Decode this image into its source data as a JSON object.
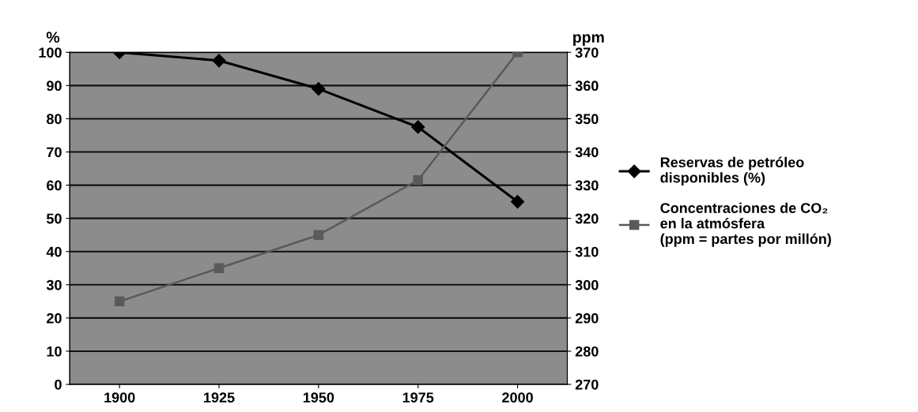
{
  "chart_data": {
    "type": "line",
    "ylabel": "%",
    "y2label": "ppm",
    "categories": [
      "1900",
      "1925",
      "1950",
      "1975",
      "2000"
    ],
    "series": [
      {
        "name": "Reservas de petróleo\ndisponibles (%)",
        "color": "#000000",
        "marker": "diamond",
        "values": [
          100,
          97.5,
          89,
          77.5,
          55
        ]
      },
      {
        "name": "Concentraciones de CO₂\nen la atmósfera\n(ppm = partes por millón)",
        "color": "#5a5a5a",
        "marker": "square",
        "axis": "y2",
        "values": [
          295,
          305,
          315,
          331.5,
          370
        ]
      }
    ],
    "ylim": [
      0,
      100
    ],
    "yticks": [
      0,
      10,
      20,
      30,
      40,
      50,
      60,
      70,
      80,
      90,
      100
    ],
    "y2lim": [
      270,
      370
    ],
    "y2ticks": [
      270,
      280,
      290,
      300,
      310,
      320,
      330,
      340,
      350,
      360,
      370
    ],
    "grid": "y",
    "legend": "right"
  }
}
